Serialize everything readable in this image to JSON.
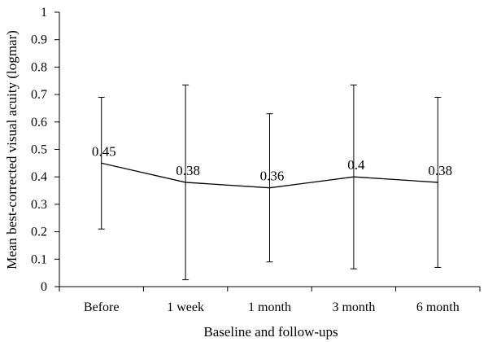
{
  "chart_data": {
    "type": "line",
    "title": "",
    "xlabel": "Baseline and follow-ups",
    "ylabel": "Mean best-corrected visual acuity (logmar)",
    "categories": [
      "Before",
      "1 week",
      "1 month",
      "3 month",
      "6 month"
    ],
    "ylim": [
      0,
      1
    ],
    "yticks": [
      "0",
      "0.1",
      "0.2",
      "0.3",
      "0.4",
      "0.5",
      "0.6",
      "0.7",
      "0.8",
      "0.9",
      "1"
    ],
    "grid": false,
    "series": [
      {
        "values": [
          0.45,
          0.38,
          0.36,
          0.4,
          0.38
        ],
        "data_labels": [
          "0.45",
          "0.38",
          "0.36",
          "0.4",
          "0.38"
        ],
        "error_low": [
          0.21,
          0.025,
          0.09,
          0.065,
          0.07
        ],
        "error_high": [
          0.69,
          0.735,
          0.63,
          0.735,
          0.69
        ]
      }
    ],
    "line_color": "#000000"
  }
}
